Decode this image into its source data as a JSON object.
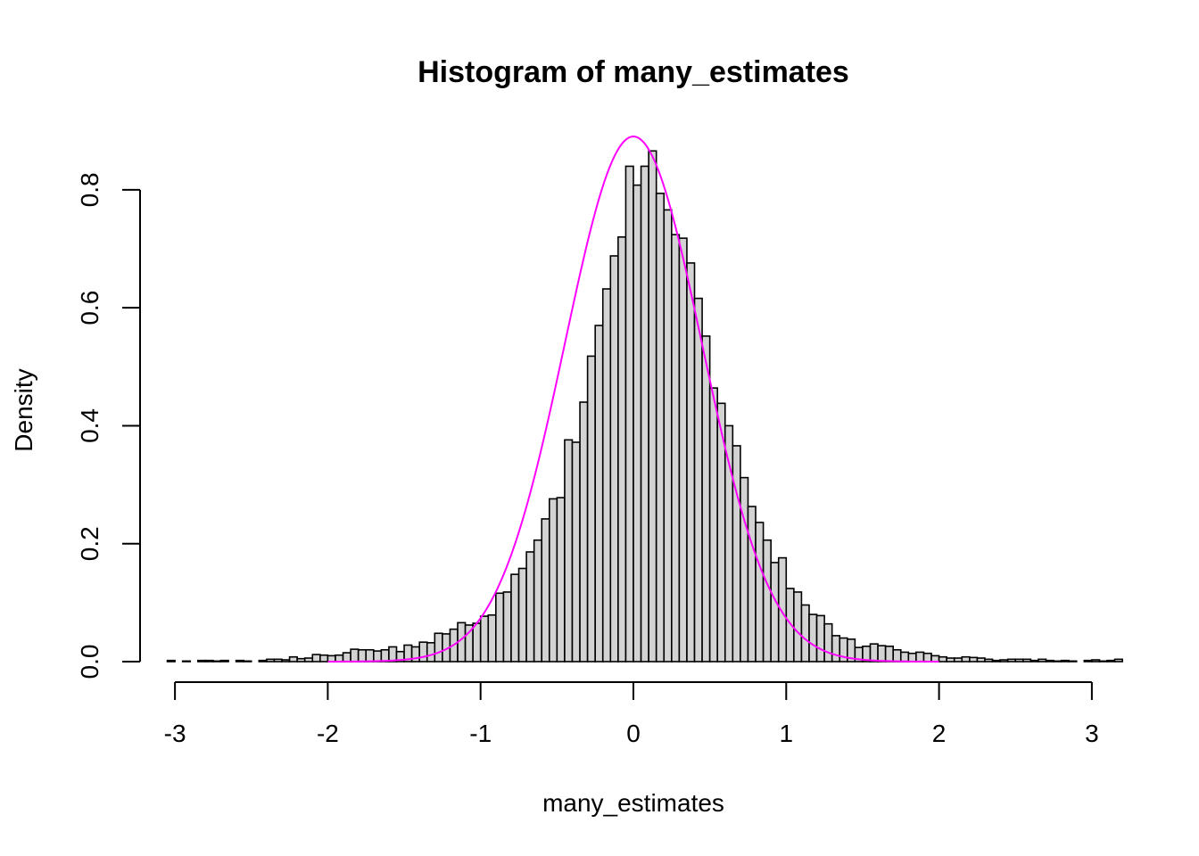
{
  "chart_data": {
    "type": "bar",
    "title": "Histogram of many_estimates",
    "xlabel": "many_estimates",
    "ylabel": "Density",
    "xlim": [
      -3.24,
      3.24
    ],
    "ylim": [
      0,
      0.88
    ],
    "x_ticks": [
      -3,
      -2,
      -1,
      0,
      1,
      2,
      3
    ],
    "x_tick_labels": [
      "-3",
      "-2",
      "-1",
      "0",
      "1",
      "2",
      "3"
    ],
    "y_ticks": [
      0,
      0.2,
      0.4,
      0.6,
      0.8
    ],
    "y_tick_labels": [
      "0.0",
      "0.2",
      "0.4",
      "0.6",
      "0.8"
    ],
    "grid": false,
    "bins": {
      "start": -3.25,
      "width": 0.05,
      "density": [
        0.0,
        0.0,
        0.0,
        0.0,
        0.002,
        0.0,
        0.001,
        0.0,
        0.002,
        0.002,
        0.001,
        0.002,
        0.0,
        0.002,
        0.001,
        0.0,
        0.002,
        0.004,
        0.004,
        0.003,
        0.008,
        0.005,
        0.006,
        0.012,
        0.011,
        0.01,
        0.011,
        0.015,
        0.021,
        0.02,
        0.02,
        0.018,
        0.02,
        0.025,
        0.017,
        0.028,
        0.025,
        0.033,
        0.032,
        0.048,
        0.047,
        0.055,
        0.066,
        0.062,
        0.065,
        0.077,
        0.079,
        0.116,
        0.118,
        0.148,
        0.158,
        0.186,
        0.206,
        0.242,
        0.276,
        0.278,
        0.376,
        0.372,
        0.44,
        0.518,
        0.57,
        0.632,
        0.688,
        0.72,
        0.84,
        0.808,
        0.84,
        0.866,
        0.794,
        0.766,
        0.724,
        0.718,
        0.676,
        0.616,
        0.552,
        0.464,
        0.438,
        0.4,
        0.366,
        0.312,
        0.263,
        0.236,
        0.206,
        0.168,
        0.176,
        0.124,
        0.118,
        0.096,
        0.08,
        0.078,
        0.064,
        0.044,
        0.04,
        0.038,
        0.024,
        0.026,
        0.03,
        0.027,
        0.026,
        0.02,
        0.016,
        0.014,
        0.016,
        0.014,
        0.01,
        0.008,
        0.006,
        0.006,
        0.008,
        0.007,
        0.006,
        0.004,
        0.002,
        0.003,
        0.004,
        0.004,
        0.004,
        0.002,
        0.004,
        0.002,
        0.001,
        0.002,
        0.001,
        0.0,
        0.002,
        0.003,
        0.001,
        0.002,
        0.004
      ]
    },
    "series": [
      {
        "type": "line",
        "color": "#ff00ff",
        "distribution": "normal",
        "mean": 0,
        "sd": 0.448,
        "x_range": [
          -2,
          2
        ]
      }
    ]
  }
}
